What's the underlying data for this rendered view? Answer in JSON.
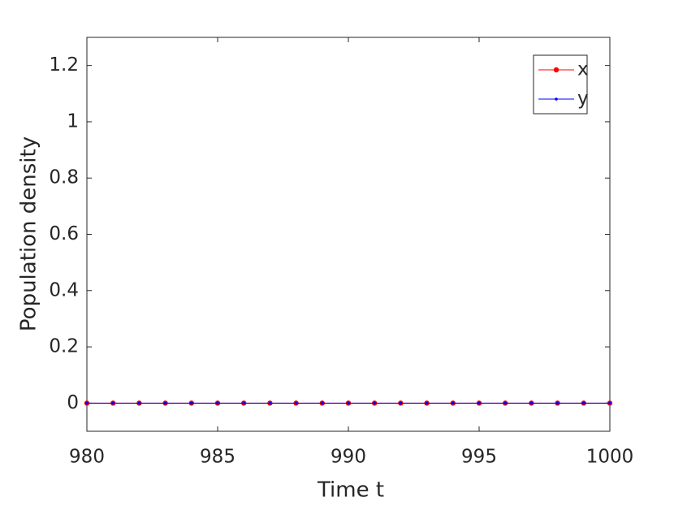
{
  "chart_data": {
    "type": "line",
    "xlabel": "Time t",
    "ylabel": "Population density",
    "x": [
      980,
      981,
      982,
      983,
      984,
      985,
      986,
      987,
      988,
      989,
      990,
      991,
      992,
      993,
      994,
      995,
      996,
      997,
      998,
      999,
      1000
    ],
    "series": [
      {
        "name": "x",
        "color": "#ff0000",
        "values": [
          0,
          0,
          0,
          0,
          0,
          0,
          0,
          0,
          0,
          0,
          0,
          0,
          0,
          0,
          0,
          0,
          0,
          0,
          0,
          0,
          0
        ]
      },
      {
        "name": "y",
        "color": "#0000ff",
        "values": [
          0,
          0,
          0,
          0,
          0,
          0,
          0,
          0,
          0,
          0,
          0,
          0,
          0,
          0,
          0,
          0,
          0,
          0,
          0,
          0,
          0
        ]
      }
    ],
    "xlim": [
      980,
      1000
    ],
    "xticks": [
      980,
      985,
      990,
      995,
      1000
    ],
    "ylim": [
      -0.1,
      1.3
    ],
    "yticks": [
      0,
      0.2,
      0.4,
      0.6,
      0.8,
      1,
      1.2
    ],
    "legend": "upper-right"
  }
}
